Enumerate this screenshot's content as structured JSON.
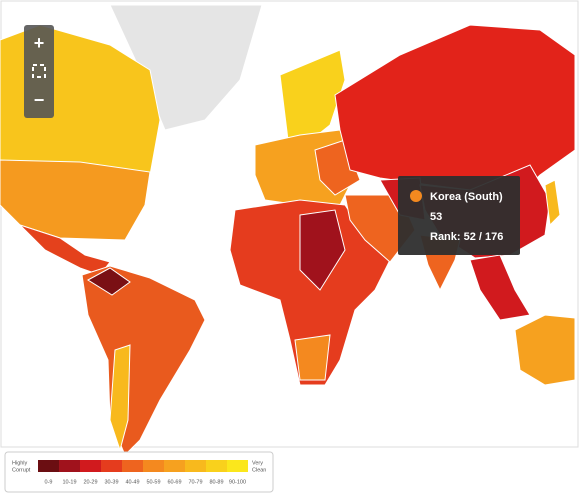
{
  "tooltip": {
    "name": "Korea (South)",
    "score": 53,
    "rank": "Rank: 52 / 176"
  },
  "legend": {
    "low_label": [
      "Highly",
      "Corrupt"
    ],
    "high_label": [
      "Very",
      "Clean"
    ],
    "bins": [
      {
        "label": "0-9",
        "color": "#6b0e12"
      },
      {
        "label": "10-19",
        "color": "#a0121c"
      },
      {
        "label": "20-29",
        "color": "#d11a1e"
      },
      {
        "label": "30-39",
        "color": "#e53c1e"
      },
      {
        "label": "40-49",
        "color": "#ee641f"
      },
      {
        "label": "50-59",
        "color": "#f4891f"
      },
      {
        "label": "60-69",
        "color": "#f6a11f"
      },
      {
        "label": "70-79",
        "color": "#f8b91d"
      },
      {
        "label": "80-89",
        "color": "#f9d11c"
      },
      {
        "label": "90-100",
        "color": "#fbe71c"
      }
    ]
  }
}
